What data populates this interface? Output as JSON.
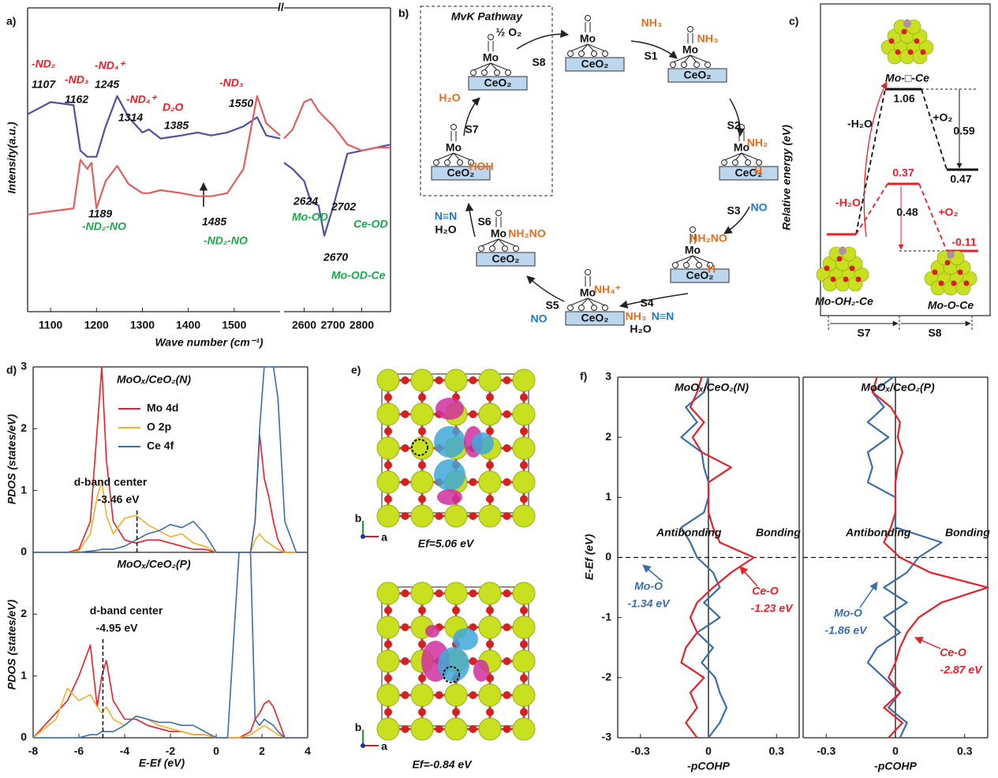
{
  "panel_labels": [
    "a)",
    "b)",
    "c)",
    "d)",
    "e)",
    "f)"
  ],
  "chart_data": [
    {
      "type": "line",
      "ylabel": "Intensity(a.u.)",
      "xlabel": "Wave number (cm⁻¹)",
      "x": [
        1050,
        1100,
        1150,
        1165,
        1180,
        1189,
        1200,
        1220,
        1245,
        1270,
        1300,
        1314,
        1340,
        1385,
        1420,
        1450,
        1485,
        1520,
        1550,
        1570,
        1600
      ],
      "series": [
        {
          "color": "#5050a0",
          "values": [
            65,
            69,
            68,
            53,
            51,
            51,
            51,
            61,
            71,
            64,
            59,
            60,
            57,
            58,
            59,
            58,
            59,
            61,
            64,
            58,
            57
          ]
        },
        {
          "color": "#e06060",
          "values": [
            32,
            33,
            34,
            50,
            47,
            49,
            34,
            43,
            48,
            42,
            39,
            39,
            40,
            39,
            38,
            38,
            39,
            47,
            71,
            62,
            58
          ]
        }
      ],
      "xlim": [
        1050,
        1600
      ],
      "xticks": [
        1100,
        1200,
        1300,
        1400,
        1500
      ],
      "ylim": [
        0,
        100
      ],
      "annotations": [
        {
          "text": "-ND₂",
          "color": "#e8202a"
        },
        {
          "text": "1107",
          "color": "#111"
        },
        {
          "text": "-ND₃",
          "color": "#e8202a"
        },
        {
          "text": "1162",
          "color": "#111"
        },
        {
          "text": "-ND₄⁺",
          "color": "#e8202a"
        },
        {
          "text": "1245",
          "color": "#111"
        },
        {
          "text": "-ND₄⁺",
          "color": "#e8202a"
        },
        {
          "text": "1314",
          "color": "#111"
        },
        {
          "text": "D₂O",
          "color": "#e8202a"
        },
        {
          "text": "1385",
          "color": "#111"
        },
        {
          "text": "-ND₃",
          "color": "#e8202a"
        },
        {
          "text": "1550",
          "color": "#111"
        },
        {
          "text": "1189",
          "color": "#111"
        },
        {
          "text": "-ND₂-NO",
          "color": "#1aa84b"
        },
        {
          "text": "1485",
          "color": "#111"
        },
        {
          "text": "-ND₂-NO",
          "color": "#1aa84b"
        }
      ]
    },
    {
      "type": "line",
      "x": [
        2530,
        2560,
        2600,
        2624,
        2650,
        2670,
        2702,
        2750,
        2800,
        2850,
        2900
      ],
      "series": [
        {
          "color": "#5050a0",
          "values": [
            49,
            47,
            43,
            36,
            35,
            25,
            35,
            52,
            53,
            54,
            55
          ]
        },
        {
          "color": "#e06060",
          "values": [
            57,
            60,
            69,
            70,
            66,
            64,
            61,
            55,
            53,
            54,
            54
          ]
        }
      ],
      "xlim": [
        2530,
        2900
      ],
      "xticks": [
        2600,
        2700,
        2800
      ],
      "ylim": [
        0,
        100
      ],
      "annotations": [
        {
          "text": "2624",
          "color": "#111"
        },
        {
          "text": "Mo-OD",
          "color": "#1aa84b"
        },
        {
          "text": "2702",
          "color": "#111"
        },
        {
          "text": "Ce-OD",
          "color": "#1aa84b"
        },
        {
          "text": "2670",
          "color": "#111"
        },
        {
          "text": "Mo-OD-Ce",
          "color": "#1aa84b"
        }
      ]
    },
    {
      "type": "line",
      "title": "MoOₓ/CeO₂(N)",
      "ylabel": "PDOS (states/eV)",
      "legend": "upper-left",
      "x": [
        -8,
        -7,
        -6.5,
        -6,
        -5.5,
        -5.2,
        -5,
        -4.8,
        -4.5,
        -4,
        -3.5,
        -3,
        -2.5,
        -2,
        -1.5,
        -1,
        -0.5,
        0,
        0.5,
        1,
        1.5,
        1.7,
        1.9,
        2.1,
        2.3,
        2.5,
        2.7,
        3,
        3.5,
        4
      ],
      "series": [
        {
          "name": "Mo 4d",
          "color": "#e8202a",
          "values": [
            0,
            0,
            0,
            0.05,
            0.5,
            2.0,
            3.0,
            1.5,
            0.5,
            0.2,
            0.15,
            0.2,
            0.2,
            0.15,
            0.1,
            0.05,
            0.05,
            0,
            0,
            0,
            0,
            0.5,
            1.9,
            1.2,
            0.9,
            0.5,
            0.2,
            0,
            0,
            0
          ]
        },
        {
          "name": "O 2p",
          "color": "#f0b030",
          "values": [
            0,
            0,
            0,
            0.02,
            0.3,
            0.9,
            1.15,
            0.6,
            0.3,
            0.55,
            0.6,
            0.45,
            0.35,
            0.25,
            0.3,
            0.15,
            0.1,
            0,
            0,
            0,
            0,
            0.2,
            0.3,
            0.2,
            0.15,
            0.1,
            0.05,
            0,
            0,
            0
          ]
        },
        {
          "name": "Ce 4f",
          "color": "#3a6ea8",
          "values": [
            0,
            0,
            0,
            0,
            0.02,
            0.03,
            0.05,
            0.05,
            0.05,
            0.1,
            0.2,
            0.3,
            0.35,
            0.45,
            0.4,
            0.5,
            0.3,
            0,
            0,
            0,
            0,
            0.5,
            2.0,
            3.0,
            3.0,
            3.0,
            2.5,
            0.5,
            0,
            0
          ]
        }
      ],
      "xlim": [
        -8,
        4
      ],
      "ylim": [
        0,
        3
      ],
      "yticks": [
        0,
        1,
        2,
        3
      ],
      "annotation": {
        "text": "d-band center",
        "value": -3.46,
        "label": "-3.46 eV"
      }
    },
    {
      "type": "line",
      "title": "MoOₓ/CeO₂(P)",
      "ylabel": "PDOS (states/eV)",
      "xlabel": "E-Ef (eV)",
      "x": [
        -8,
        -7,
        -6.5,
        -6,
        -5.5,
        -5.2,
        -5,
        -4.8,
        -4.5,
        -4,
        -3.5,
        -3,
        -2.5,
        -2,
        -1.5,
        -1,
        -0.5,
        0,
        0.5,
        1,
        1.5,
        1.7,
        1.9,
        2.1,
        2.3,
        2.5,
        2.7,
        3,
        3.5,
        4
      ],
      "series": [
        {
          "name": "Mo 4d",
          "color": "#e8202a",
          "values": [
            0,
            0.4,
            0.6,
            1.0,
            1.5,
            0.5,
            1.0,
            1.25,
            0.6,
            0.3,
            0.3,
            0.2,
            0.15,
            0.1,
            0.1,
            0.05,
            0.05,
            0,
            0,
            0,
            0.1,
            0.3,
            0.4,
            0.55,
            0.6,
            0.5,
            0.3,
            0,
            0,
            0
          ]
        },
        {
          "name": "O 2p",
          "color": "#f0b030",
          "values": [
            0,
            0.3,
            0.8,
            0.6,
            0.7,
            0.5,
            0.4,
            0.5,
            0.3,
            0.2,
            0.35,
            0.3,
            0.2,
            0.15,
            0.1,
            0.05,
            0.05,
            0,
            0,
            0,
            0.05,
            0.1,
            0.15,
            0.2,
            0.15,
            0.1,
            0.05,
            0,
            0,
            0
          ]
        },
        {
          "name": "Ce 4f",
          "color": "#3a6ea8",
          "values": [
            0,
            0,
            0,
            0,
            0.05,
            0.05,
            0.1,
            0.1,
            0.1,
            0.2,
            0.35,
            0.3,
            0.25,
            0.25,
            0.2,
            0.2,
            0.1,
            0,
            0,
            3.0,
            3.0,
            0.3,
            0.2,
            0.3,
            0.25,
            0.2,
            0.1,
            0,
            0,
            0
          ]
        }
      ],
      "xlim": [
        -8,
        4
      ],
      "xticks": [
        -8,
        -6,
        -4,
        -2,
        0,
        2,
        4
      ],
      "ylim": [
        0,
        3
      ],
      "yticks": [
        0,
        1,
        2
      ],
      "annotation": {
        "text": "d-band center",
        "value": -4.95,
        "label": "-4.95 eV"
      }
    },
    {
      "type": "line",
      "orientation": "vertical",
      "title": "MoOₓ/CeO₂(N)",
      "ylabel": "E-Ef (eV)",
      "xlabel": "-pCOHP",
      "y": [
        3,
        2.75,
        2.5,
        2.25,
        2,
        1.75,
        1.5,
        1.25,
        1,
        0.75,
        0.5,
        0.25,
        0,
        -0.25,
        -0.5,
        -0.75,
        -1,
        -1.25,
        -1.5,
        -1.75,
        -2,
        -2.25,
        -2.5,
        -2.75,
        -3
      ],
      "series": [
        {
          "name": "Mo-O",
          "annotation": "-1.34 eV",
          "color": "#3a6ea8",
          "values": [
            0,
            -0.02,
            -0.1,
            -0.05,
            -0.12,
            -0.03,
            -0.02,
            0,
            0,
            -0.02,
            -0.12,
            -0.08,
            -0.05,
            0.02,
            0.05,
            -0.02,
            0.05,
            -0.05,
            0.02,
            -0.03,
            0.03,
            0.05,
            0.08,
            0.05,
            0
          ]
        },
        {
          "name": "Ce-O",
          "annotation": "-1.23 eV",
          "color": "#e8202a",
          "values": [
            -0.03,
            -0.05,
            -0.08,
            -0.02,
            -0.07,
            -0.03,
            0.1,
            0,
            0,
            0,
            0.02,
            0.05,
            0.2,
            0.1,
            0.02,
            -0.05,
            -0.08,
            -0.05,
            -0.1,
            -0.12,
            -0.02,
            -0.08,
            -0.05,
            -0.1,
            -0.05
          ]
        }
      ],
      "xlim": [
        -0.4,
        0.4
      ],
      "xticks": [
        -0.3,
        0,
        0.3
      ],
      "ylim": [
        -3,
        3
      ],
      "yticks": [
        -3,
        -2,
        -1,
        0,
        1,
        2,
        3
      ],
      "annotations": [
        {
          "text": "Antibonding",
          "color": "#111"
        },
        {
          "text": "Bonding",
          "color": "#111"
        }
      ]
    },
    {
      "type": "line",
      "orientation": "vertical",
      "title": "MoOₓ/CeO₂(P)",
      "xlabel": "-pCOHP",
      "y": [
        3,
        2.75,
        2.5,
        2.25,
        2,
        1.75,
        1.5,
        1.25,
        1,
        0.75,
        0.5,
        0.25,
        0,
        -0.25,
        -0.5,
        -0.75,
        -1,
        -1.25,
        -1.5,
        -1.75,
        -2,
        -2.25,
        -2.5,
        -2.75,
        -3
      ],
      "series": [
        {
          "name": "Mo-O",
          "annotation": "-1.86 eV",
          "color": "#3a6ea8",
          "values": [
            -0.01,
            -0.1,
            -0.05,
            -0.12,
            -0.03,
            -0.12,
            -0.1,
            -0.12,
            0,
            0,
            0,
            0.2,
            0.1,
            0.05,
            -0.05,
            0.05,
            -0.05,
            0.02,
            -0.08,
            -0.12,
            -0.05,
            0.02,
            -0.03,
            0.05,
            0.02
          ]
        },
        {
          "name": "Ce-O",
          "annotation": "-2.87 eV",
          "color": "#e8202a",
          "values": [
            -0.08,
            -0.1,
            -0.02,
            0.02,
            0.01,
            0.03,
            0.01,
            0,
            0,
            0,
            -0.02,
            -0.05,
            0.02,
            0.15,
            0.4,
            0.2,
            0.1,
            0.05,
            0.02,
            0,
            -0.03,
            0.02,
            -0.05,
            0.03,
            -0.03
          ]
        }
      ],
      "xlim": [
        -0.4,
        0.4
      ],
      "xticks": [
        -0.3,
        0,
        0.3
      ],
      "ylim": [
        -3,
        3
      ],
      "annotations": [
        {
          "text": "Antibonding",
          "color": "#111"
        },
        {
          "text": "Bonding",
          "color": "#111"
        }
      ]
    }
  ],
  "diagram_b": {
    "title": "MvK Pathway",
    "slab_label": "CeO₂",
    "metal_label": "Mo",
    "steps": [
      "S1",
      "S2",
      "S3",
      "S4",
      "S5",
      "S6",
      "S7",
      "S8"
    ],
    "species": [
      {
        "text": "½ O₂",
        "color": "#111"
      },
      {
        "text": "NH₃",
        "color": "#e07020"
      },
      {
        "text": "NH₃",
        "color": "#e07020"
      },
      {
        "text": "NH₂",
        "color": "#e07020"
      },
      {
        "text": "H",
        "color": "#e07020"
      },
      {
        "text": "NO",
        "color": "#1f78c8"
      },
      {
        "text": "NH₂NO",
        "color": "#e07020"
      },
      {
        "text": "H",
        "color": "#e07020"
      },
      {
        "text": "NH₄⁺",
        "color": "#e07020"
      },
      {
        "text": "NH₃",
        "color": "#e07020"
      },
      {
        "text": "N≡N",
        "color": "#1f78c8"
      },
      {
        "text": "H₂O",
        "color": "#111"
      },
      {
        "text": "NO",
        "color": "#1f78c8"
      },
      {
        "text": "NH₂NO",
        "color": "#e07020"
      },
      {
        "text": "HOH",
        "color": "#e07020"
      },
      {
        "text": "N≡N",
        "color": "#1f78c8"
      },
      {
        "text": "H₂O",
        "color": "#111"
      },
      {
        "text": "H₂O",
        "color": "#e07020"
      }
    ]
  },
  "diagram_c": {
    "ylabel": "Relative energy (eV)",
    "steps": [
      "S7",
      "S8"
    ],
    "labels": [
      {
        "text": "Mo-□-Ce",
        "color": "#111"
      },
      {
        "text": "1.06",
        "color": "#111"
      },
      {
        "text": "+O₂",
        "color": "#111"
      },
      {
        "text": "0.59",
        "color": "#111"
      },
      {
        "text": "0.47",
        "color": "#111"
      },
      {
        "text": "-H₂O",
        "color": "#111"
      },
      {
        "text": "0.37",
        "color": "#e8202a"
      },
      {
        "text": "-H₂O",
        "color": "#e8202a"
      },
      {
        "text": "0.48",
        "color": "#111"
      },
      {
        "text": "+O₂",
        "color": "#e8202a"
      },
      {
        "text": "-0.11",
        "color": "#e8202a"
      },
      {
        "text": "Mo-OH₂-Ce",
        "color": "#111"
      },
      {
        "text": "Mo-O-Ce",
        "color": "#111"
      }
    ]
  },
  "panel_e": {
    "captions": [
      "Ef=5.06 eV",
      "Ef=-0.84 eV"
    ],
    "axis_labels": [
      "b",
      "a"
    ]
  }
}
